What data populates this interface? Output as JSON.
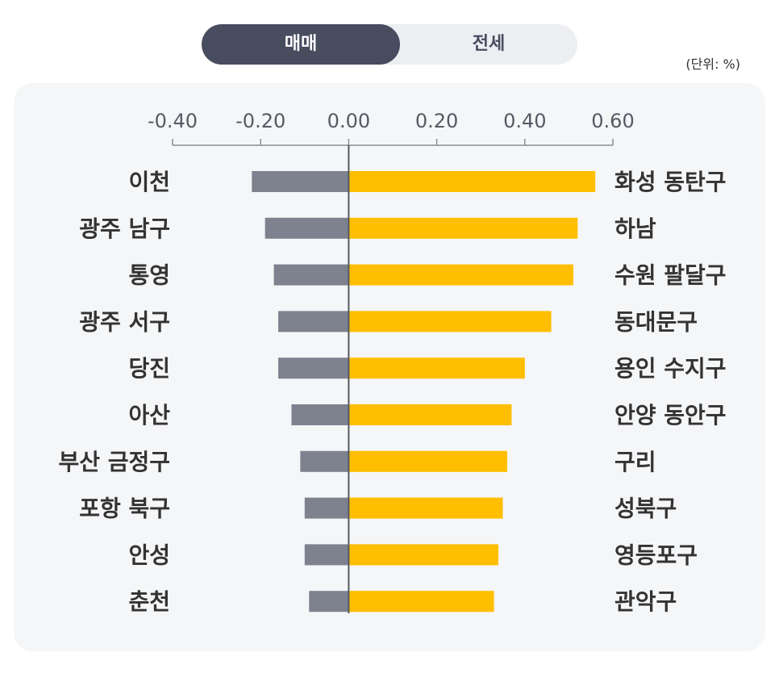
{
  "tabs": {
    "active": "매매",
    "inactive": "전세"
  },
  "unit_label": "(단위: %)",
  "colors": {
    "positive": "#ffbe00",
    "negative": "#7e828f",
    "toggle_active": "#474c5e",
    "panel": "#f5f6f8"
  },
  "chart_data": {
    "type": "bar",
    "orientation": "horizontal",
    "xlim": [
      -0.4,
      0.6
    ],
    "x_ticks": [
      "-0.40",
      "-0.20",
      "0.00",
      "0.20",
      "0.40",
      "0.60"
    ],
    "x_tick_values": [
      -0.4,
      -0.2,
      0.0,
      0.2,
      0.4,
      0.6
    ],
    "grid": false,
    "rows": [
      {
        "negative_label": "이천",
        "negative_value": -0.22,
        "positive_label": "화성 동탄구",
        "positive_value": 0.56
      },
      {
        "negative_label": "광주 남구",
        "negative_value": -0.19,
        "positive_label": "하남",
        "positive_value": 0.52
      },
      {
        "negative_label": "통영",
        "negative_value": -0.17,
        "positive_label": "수원 팔달구",
        "positive_value": 0.51
      },
      {
        "negative_label": "광주 서구",
        "negative_value": -0.16,
        "positive_label": "동대문구",
        "positive_value": 0.46
      },
      {
        "negative_label": "당진",
        "negative_value": -0.16,
        "positive_label": "용인 수지구",
        "positive_value": 0.4
      },
      {
        "negative_label": "아산",
        "negative_value": -0.13,
        "positive_label": "안양 동안구",
        "positive_value": 0.37
      },
      {
        "negative_label": "부산 금정구",
        "negative_value": -0.11,
        "positive_label": "구리",
        "positive_value": 0.36
      },
      {
        "negative_label": "포항 북구",
        "negative_value": -0.1,
        "positive_label": "성북구",
        "positive_value": 0.35
      },
      {
        "negative_label": "안성",
        "negative_value": -0.1,
        "positive_label": "영등포구",
        "positive_value": 0.34
      },
      {
        "negative_label": "춘천",
        "negative_value": -0.09,
        "positive_label": "관악구",
        "positive_value": 0.33
      }
    ]
  }
}
